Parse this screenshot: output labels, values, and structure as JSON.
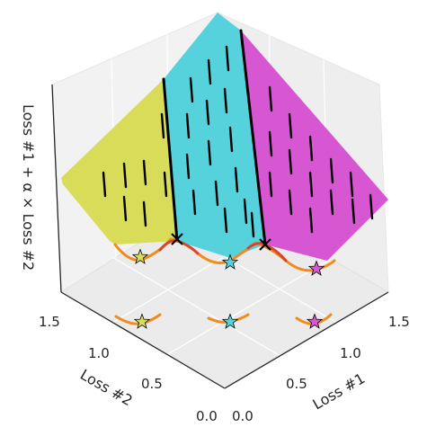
{
  "chart_data": {
    "type": "surface3d",
    "title": "",
    "xlabel": "Loss #1",
    "ylabel": "Loss #2",
    "zlabel": "Loss #1 + α × Loss #2",
    "xticks": [
      "0.0",
      "0.5",
      "1.0",
      "1.5"
    ],
    "yticks": [
      "0.0",
      "0.5",
      "1.0",
      "1.5"
    ],
    "xlim": [
      0,
      1.5
    ],
    "ylim": [
      0,
      1.5
    ],
    "regions": [
      {
        "name": "yellow",
        "color": "#d8dc58"
      },
      {
        "name": "cyan",
        "color": "#56d2dc"
      },
      {
        "name": "magenta",
        "color": "#d756d2"
      }
    ],
    "minima_markers": [
      {
        "loss1": 0.25,
        "loss2": 1.25,
        "color": "#d8dc58",
        "marker": "star"
      },
      {
        "loss1": 0.75,
        "loss2": 0.75,
        "color": "#56d2dc",
        "marker": "star"
      },
      {
        "loss1": 1.25,
        "loss2": 0.25,
        "color": "#d756d2",
        "marker": "star"
      }
    ],
    "boundary_markers": [
      {
        "loss1": 0.5,
        "loss2": 1.0,
        "marker": "x"
      },
      {
        "loss1": 1.0,
        "loss2": 0.5,
        "marker": "x"
      }
    ],
    "front_curve_colors": [
      "#f28b1e",
      "#d94630"
    ],
    "grid": true
  }
}
